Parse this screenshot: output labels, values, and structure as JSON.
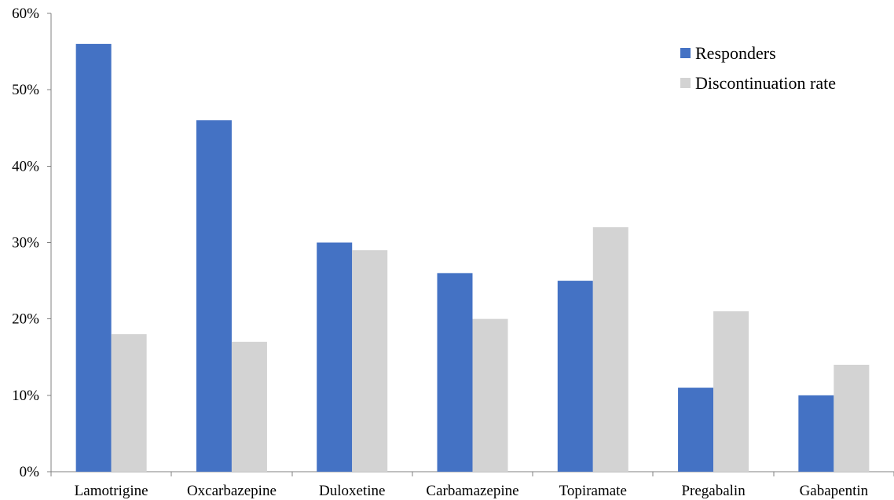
{
  "chart_data": {
    "type": "bar",
    "title": "",
    "xlabel": "",
    "ylabel": "",
    "categories": [
      "Lamotrigine",
      "Oxcarbazepine",
      "Duloxetine",
      "Carbamazepine",
      "Topiramate",
      "Pregabalin",
      "Gabapentin"
    ],
    "series": [
      {
        "name": "Responders",
        "values": [
          56,
          46,
          30,
          26,
          25,
          11,
          10
        ],
        "color": "#4472C4"
      },
      {
        "name": "Discontinuation rate",
        "values": [
          18,
          17,
          29,
          20,
          32,
          21,
          14
        ],
        "color": "#D3D3D3"
      }
    ],
    "ylim": [
      0,
      60
    ],
    "y_ticks": [
      0,
      10,
      20,
      30,
      40,
      50,
      60
    ],
    "y_tick_labels": [
      "0%",
      "10%",
      "20%",
      "30%",
      "40%",
      "50%",
      "60%"
    ],
    "grid": false,
    "legend_position": "top-right"
  }
}
